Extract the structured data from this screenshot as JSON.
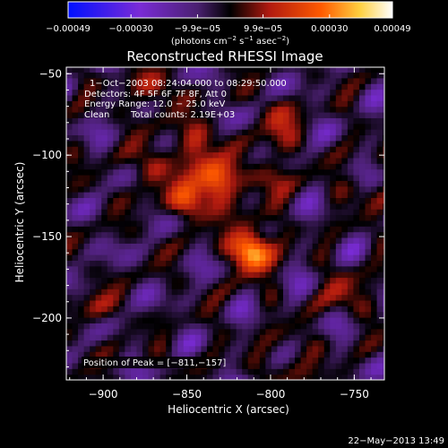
{
  "chart_data": {
    "type": "heatmap",
    "title": "Reconstructed RHESSI Image",
    "xlabel": "Heliocentric X (arcsec)",
    "ylabel": "Heliocentric Y (arcsec)",
    "xlim": [
      -922,
      -732
    ],
    "ylim": [
      -238,
      -46
    ],
    "x_ticks": [
      -900,
      -850,
      -800,
      -750
    ],
    "x_tick_labels": [
      "−900",
      "−850",
      "−800",
      "−750"
    ],
    "y_ticks": [
      -50,
      -100,
      -150,
      -200
    ],
    "y_tick_labels": [
      "−50",
      "−100",
      "−150",
      "−200"
    ],
    "colorbar": {
      "range": [
        -0.00049,
        0.00049
      ],
      "ticks": [
        -0.00049,
        -0.0003,
        -9.9e-05,
        9.9e-05,
        0.0003,
        0.00049
      ],
      "tick_labels": [
        "−0.00049",
        "−0.00030",
        "−9.9e−05",
        "9.9e−05",
        "0.00030",
        "0.00049"
      ],
      "units_prefix": "(photons cm",
      "units_exp1": "−2",
      "units_mid": " s",
      "units_exp2": "−1",
      "units_mid2": " asec",
      "units_exp3": "−2",
      "units_suffix": ")",
      "colors": [
        "#0010ff",
        "#7a2bd6",
        "#4a2070",
        "#000000",
        "#b01a10",
        "#ff5a00",
        "#ffd040",
        "#ffffff"
      ]
    },
    "peaks": [
      {
        "x": -811,
        "y": -157,
        "value": 0.00049
      },
      {
        "x": -832,
        "y": -118,
        "value": 0.0004
      },
      {
        "x": -845,
        "y": -95,
        "value": 0.00026
      },
      {
        "x": -850,
        "y": -128,
        "value": 0.00022
      },
      {
        "x": -872,
        "y": -110,
        "value": 0.00018
      },
      {
        "x": -800,
        "y": -110,
        "value": 0.00018
      },
      {
        "x": -870,
        "y": -62,
        "value": 0.0002
      },
      {
        "x": -795,
        "y": -80,
        "value": 0.00016
      },
      {
        "x": -790,
        "y": -225,
        "value": 0.00014
      },
      {
        "x": -905,
        "y": -195,
        "value": 0.00012
      },
      {
        "x": -755,
        "y": -185,
        "value": 0.00014
      },
      {
        "x": -745,
        "y": -120,
        "value": 0.0001
      }
    ],
    "annotations": {
      "time": "1−Oct−2003 08:24:04.000 to 08:29:50.000",
      "detectors": "Detectors: 4F 5F 6F 7F 8F, Att 0",
      "energy": "Energy Range: 12.0 − 25.0 keV",
      "method": "Clean",
      "counts": "Total counts: 2.19E+03",
      "peak": "Position of Peak = [−811,−157]"
    }
  },
  "footer": {
    "date": "22−May−2013 13:49"
  }
}
